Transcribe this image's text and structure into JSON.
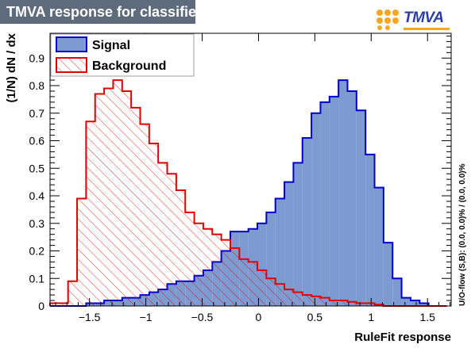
{
  "header": {
    "title": "TMVA response for classifier: RuleFit",
    "logo_text": "TMVA"
  },
  "chart_data": {
    "type": "histogram",
    "xlabel": "RuleFit response",
    "ylabel": "(1/N) dN / dx",
    "side_label": "U/O-flow (S,B): (0.0, 0.0)% / (0.0, 0.0)%",
    "xlim": [
      -1.85,
      1.71
    ],
    "ylim": [
      0,
      0.99
    ],
    "x_ticks": [
      "−1.5",
      "−1",
      "−0.5",
      "0",
      "0.5",
      "1",
      "1.5"
    ],
    "x_tick_values": [
      -1.5,
      -1,
      -0.5,
      0,
      0.5,
      1,
      1.5
    ],
    "y_ticks": [
      "0",
      "0.1",
      "0.2",
      "0.3",
      "0.4",
      "0.5",
      "0.6",
      "0.7",
      "0.8",
      "0.9"
    ],
    "y_tick_values": [
      0,
      0.1,
      0.2,
      0.3,
      0.4,
      0.5,
      0.6,
      0.7,
      0.8,
      0.9
    ],
    "legend_position": "top-left",
    "bin_edges": [
      -1.85,
      -1.77,
      -1.69,
      -1.61,
      -1.53,
      -1.45,
      -1.37,
      -1.29,
      -1.21,
      -1.13,
      -1.05,
      -0.97,
      -0.89,
      -0.81,
      -0.73,
      -0.65,
      -0.57,
      -0.49,
      -0.41,
      -0.33,
      -0.25,
      -0.17,
      -0.09,
      -0.01,
      0.07,
      0.15,
      0.23,
      0.31,
      0.39,
      0.47,
      0.55,
      0.63,
      0.71,
      0.79,
      0.87,
      0.95,
      1.03,
      1.11,
      1.19,
      1.27,
      1.35,
      1.43,
      1.51,
      1.59,
      1.67
    ],
    "series": [
      {
        "name": "Signal",
        "fill": "#7d9bd1",
        "line": "#0000cc",
        "pattern": "solid",
        "values": [
          0.0,
          0.0,
          0.0,
          0.0,
          0.01,
          0.01,
          0.02,
          0.02,
          0.03,
          0.03,
          0.04,
          0.05,
          0.06,
          0.08,
          0.09,
          0.09,
          0.11,
          0.13,
          0.16,
          0.2,
          0.27,
          0.27,
          0.28,
          0.3,
          0.34,
          0.39,
          0.45,
          0.52,
          0.61,
          0.7,
          0.74,
          0.76,
          0.82,
          0.78,
          0.71,
          0.55,
          0.43,
          0.23,
          0.1,
          0.03,
          0.02,
          0.01,
          0.0,
          0.0
        ]
      },
      {
        "name": "Background",
        "fill": "#ffffff",
        "line": "#e00000",
        "pattern": "hatched",
        "values": [
          0.01,
          0.01,
          0.09,
          0.39,
          0.67,
          0.77,
          0.79,
          0.82,
          0.78,
          0.72,
          0.66,
          0.59,
          0.52,
          0.48,
          0.42,
          0.34,
          0.3,
          0.28,
          0.26,
          0.24,
          0.21,
          0.17,
          0.16,
          0.13,
          0.1,
          0.08,
          0.06,
          0.05,
          0.04,
          0.035,
          0.03,
          0.02,
          0.02,
          0.015,
          0.01,
          0.01,
          0.005,
          0.0,
          0.0,
          0.0,
          0.0,
          0.0,
          0.0,
          0.0
        ]
      }
    ]
  },
  "colors": {
    "title_bg": "#5d6b7d",
    "signal_fill": "#7d9bd1",
    "signal_line": "#0000cc",
    "background_line": "#e00000",
    "logo_blue": "#2c3ea0",
    "logo_orange": "#f5a623"
  }
}
